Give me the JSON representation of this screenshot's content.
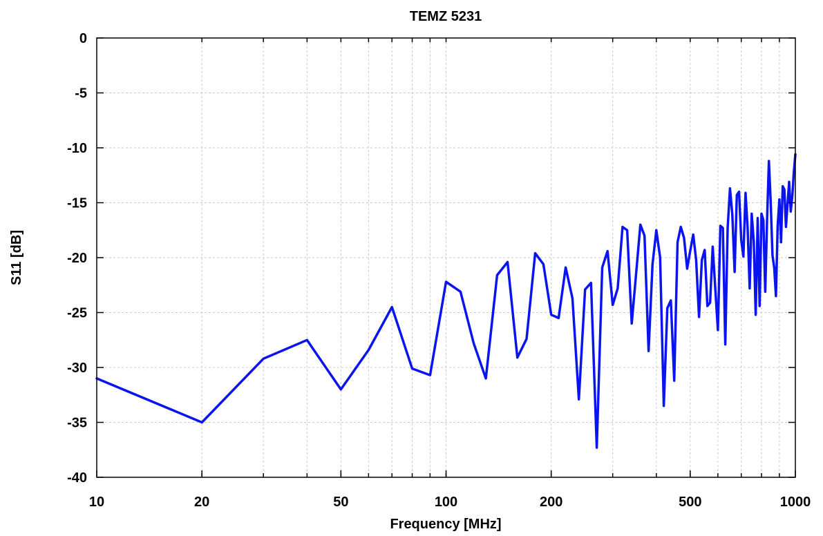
{
  "chart_data": {
    "type": "line",
    "title": "TEMZ 5231",
    "xlabel": "Frequency [MHz]",
    "ylabel": "S11 [dB]",
    "x_scale": "log",
    "xlim": [
      10,
      1000
    ],
    "ylim": [
      -40,
      0
    ],
    "grid": true,
    "x_ticks": [
      10,
      20,
      50,
      100,
      200,
      500,
      1000
    ],
    "x_tick_labels": [
      "10",
      "20",
      "50",
      "100",
      "200",
      "500",
      "1000"
    ],
    "y_ticks": [
      0,
      -5,
      -10,
      -15,
      -20,
      -25,
      -30,
      -35,
      -40
    ],
    "y_tick_labels": [
      "0",
      "-5",
      "-10",
      "-15",
      "-20",
      "-25",
      "-30",
      "-35",
      "-40"
    ],
    "series_color": "#0a14ee",
    "series": [
      {
        "x": [
          10,
          20,
          30,
          40,
          50,
          60,
          70,
          80,
          90,
          100,
          110,
          120,
          130,
          140,
          150,
          160,
          170,
          180,
          190,
          200,
          210,
          220,
          230,
          240,
          250,
          260,
          270,
          280,
          290,
          300,
          310,
          320,
          330,
          340,
          350,
          360,
          370,
          380,
          390,
          400,
          410,
          420,
          430,
          440,
          450,
          460,
          470,
          480,
          490,
          500,
          510,
          520,
          530,
          540,
          550,
          560,
          570,
          580,
          590,
          600,
          610,
          620,
          630,
          640,
          650,
          660,
          670,
          680,
          690,
          700,
          710,
          720,
          730,
          740,
          750,
          760,
          770,
          780,
          790,
          800,
          810,
          820,
          830,
          840,
          850,
          860,
          870,
          880,
          890,
          900,
          910,
          920,
          930,
          940,
          950,
          960,
          970,
          980,
          990,
          1000
        ],
        "values": [
          -31,
          -35,
          -29.2,
          -27.5,
          -32,
          -28.4,
          -24.5,
          -30.1,
          -30.7,
          -22.2,
          -23.1,
          -27.8,
          -31,
          -21.6,
          -20.4,
          -29.1,
          -27.4,
          -19.6,
          -20.6,
          -25.2,
          -25.5,
          -20.9,
          -23.7,
          -32.9,
          -22.9,
          -22.3,
          -37.3,
          -20.9,
          -19.4,
          -24.3,
          -22.8,
          -17.2,
          -17.5,
          -26,
          -21.5,
          -17,
          -18,
          -28.5,
          -20.6,
          -17.5,
          -20,
          -33.5,
          -24.6,
          -23.9,
          -31.2,
          -18.6,
          -17.2,
          -18.2,
          -21,
          -19.4,
          -17.9,
          -20.2,
          -25.4,
          -20.2,
          -19.3,
          -24.4,
          -24.1,
          -19,
          -22.9,
          -26.6,
          -17.1,
          -17.3,
          -27.9,
          -17.3,
          -13.7,
          -16.1,
          -21.3,
          -14.3,
          -14,
          -18.4,
          -19.9,
          -14.1,
          -17.3,
          -22.8,
          -16,
          -18.5,
          -25.2,
          -16.4,
          -24.4,
          -16,
          -16.6,
          -23.1,
          -16.5,
          -11.2,
          -14.9,
          -19.8,
          -20.9,
          -23.5,
          -17.1,
          -14.7,
          -18.6,
          -13.5,
          -13.8,
          -17.2,
          -15.1,
          -13.1,
          -15.8,
          -14.4,
          -12.2,
          -10.6
        ]
      }
    ]
  }
}
